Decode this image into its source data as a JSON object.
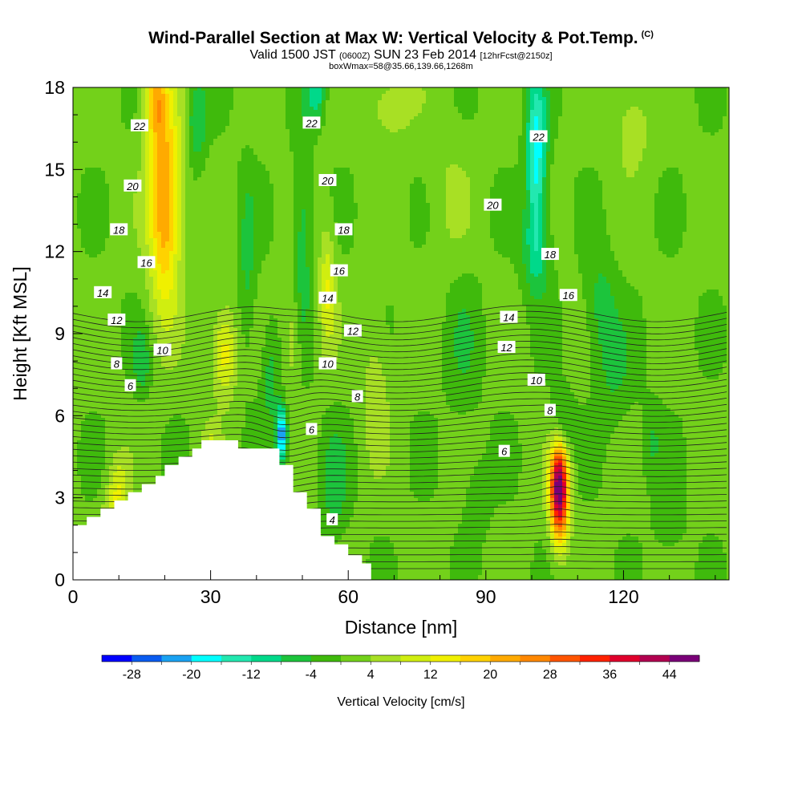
{
  "title": {
    "main": "Wind-Parallel Section at Max W: Vertical Velocity & Pot.Temp.",
    "tag": "(C)",
    "valid_a": "Valid 1500 JST",
    "valid_z": "(0600Z)",
    "valid_b": "SUN 23 Feb 2014",
    "fcst": "[12hrFcst@2150z]",
    "box": "boxWmax=58@35.66,139.66,1268m"
  },
  "chart_data": {
    "type": "heatmap",
    "title": "Wind-Parallel Section at Max W: Vertical Velocity & Pot.Temp.",
    "xlabel": "Distance [nm]",
    "ylabel": "Height [Kft MSL]",
    "xlim": [
      0,
      143
    ],
    "ylim": [
      0,
      18
    ],
    "x_ticks": [
      0,
      30,
      60,
      90,
      120
    ],
    "y_ticks": [
      0,
      3,
      6,
      9,
      12,
      15,
      18
    ],
    "colorbar": {
      "label": "Vertical Velocity [cm/s]",
      "tick_labels": [
        "-28",
        "-20",
        "-12",
        "-4",
        "4",
        "12",
        "20",
        "28",
        "36",
        "44"
      ],
      "levels": [
        -32,
        -28,
        -24,
        -20,
        -16,
        -12,
        -8,
        -4,
        0,
        4,
        8,
        12,
        16,
        20,
        24,
        28,
        32,
        36,
        40,
        44,
        48
      ],
      "colors": [
        "#0000ff",
        "#0a5cf0",
        "#1aa2f2",
        "#00ffff",
        "#22e8b0",
        "#00d98a",
        "#1cc43c",
        "#3fba0c",
        "#73d11a",
        "#a8e024",
        "#d0ee10",
        "#f0f000",
        "#ffd200",
        "#ffaa00",
        "#ff8800",
        "#ff5500",
        "#ff2200",
        "#e0002c",
        "#b20050",
        "#7a0078"
      ]
    },
    "contour_labels": [
      {
        "text": "22",
        "x": 14.5,
        "y": 16.6
      },
      {
        "text": "20",
        "x": 13,
        "y": 14.4
      },
      {
        "text": "18",
        "x": 10,
        "y": 12.8
      },
      {
        "text": "16",
        "x": 16,
        "y": 11.6
      },
      {
        "text": "14",
        "x": 6.5,
        "y": 10.5
      },
      {
        "text": "12",
        "x": 9.5,
        "y": 9.5
      },
      {
        "text": "10",
        "x": 19.5,
        "y": 8.4
      },
      {
        "text": "8",
        "x": 9.5,
        "y": 7.9
      },
      {
        "text": "6",
        "x": 12.5,
        "y": 7.1
      },
      {
        "text": "22",
        "x": 52,
        "y": 16.7
      },
      {
        "text": "20",
        "x": 55.5,
        "y": 14.6
      },
      {
        "text": "18",
        "x": 59,
        "y": 12.8
      },
      {
        "text": "16",
        "x": 58,
        "y": 11.3
      },
      {
        "text": "14",
        "x": 55.5,
        "y": 10.3
      },
      {
        "text": "12",
        "x": 61,
        "y": 9.1
      },
      {
        "text": "10",
        "x": 55.5,
        "y": 7.9
      },
      {
        "text": "8",
        "x": 62,
        "y": 6.7
      },
      {
        "text": "6",
        "x": 52,
        "y": 5.5
      },
      {
        "text": "4",
        "x": 56.5,
        "y": 2.2
      },
      {
        "text": "22",
        "x": 101.5,
        "y": 16.2
      },
      {
        "text": "20",
        "x": 91.5,
        "y": 13.7
      },
      {
        "text": "18",
        "x": 104,
        "y": 11.9
      },
      {
        "text": "16",
        "x": 108,
        "y": 10.4
      },
      {
        "text": "14",
        "x": 95,
        "y": 9.6
      },
      {
        "text": "12",
        "x": 94.5,
        "y": 8.5
      },
      {
        "text": "10",
        "x": 101,
        "y": 7.3
      },
      {
        "text": "8",
        "x": 104,
        "y": 6.2
      },
      {
        "text": "6",
        "x": 94,
        "y": 4.7
      }
    ]
  }
}
